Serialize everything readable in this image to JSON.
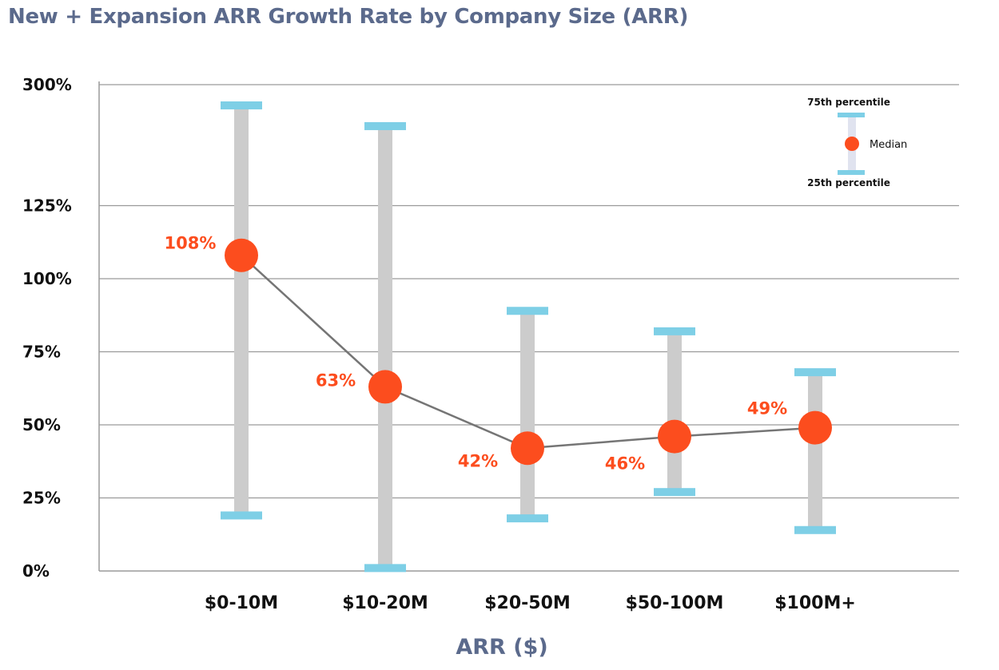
{
  "colors": {
    "title": "#5b6a8c",
    "median": "#fc4d1e",
    "whisker": "#cccccc",
    "cap": "#7ecfe6",
    "grid": "#9a9a9a",
    "line": "#757575"
  },
  "legend": {
    "p75": "75th percentile",
    "median": "Median",
    "p25": "25th percentile"
  },
  "chart_data": {
    "type": "range",
    "title": "New + Expansion ARR Growth Rate by Company Size (ARR)",
    "xlabel": "ARR ($)",
    "ylabel": "",
    "categories": [
      "$0-10M",
      "$10-20M",
      "$20-50M",
      "$50-100M",
      "$100M+"
    ],
    "yticks": [
      "0%",
      "25%",
      "50%",
      "75%",
      "100%",
      "125%",
      "300%"
    ],
    "ylim": [
      0,
      300
    ],
    "y_scale": "broken axis above 125%",
    "grid": true,
    "legend_position": "top-right",
    "series": [
      {
        "name": "Median",
        "values": [
          108,
          63,
          42,
          46,
          49
        ],
        "labels": [
          "108%",
          "63%",
          "42%",
          "46%",
          "49%"
        ]
      },
      {
        "name": "75th percentile",
        "values": [
          270,
          240,
          89,
          82,
          68
        ]
      },
      {
        "name": "25th percentile",
        "values": [
          19,
          1,
          18,
          27,
          14
        ]
      }
    ]
  }
}
